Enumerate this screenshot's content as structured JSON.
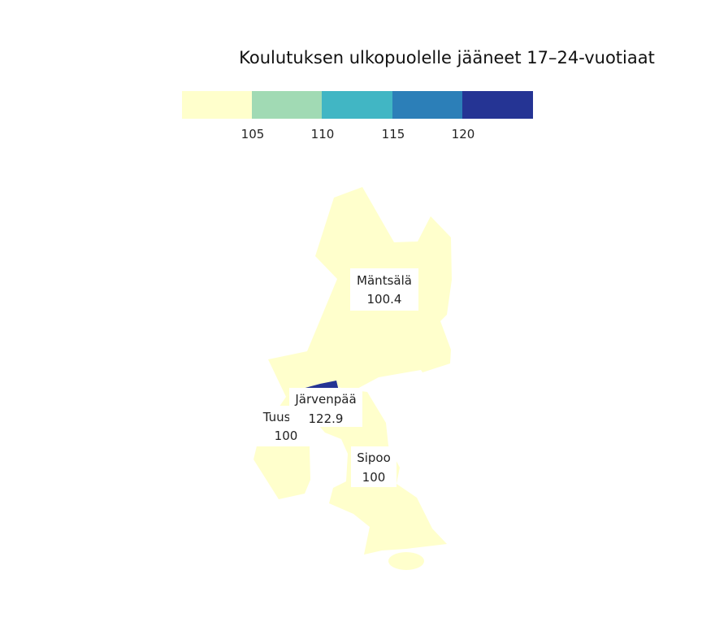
{
  "title": "Koulutuksen ulkopuolelle jääneet 17–24-vuotiaat",
  "legend": {
    "ticks": [
      "105",
      "110",
      "115",
      "120"
    ],
    "colors": [
      "#ffffcc",
      "#a1dab4",
      "#41b6c4",
      "#2c7fb8",
      "#253494"
    ]
  },
  "regions": [
    {
      "name": "Mäntsälä",
      "value": "100.4",
      "color": "#ffffcc"
    },
    {
      "name": "Järvenpää",
      "value": "122.9",
      "color": "#253494"
    },
    {
      "name": "Tuusula",
      "value": "100",
      "color": "#ffffcc"
    },
    {
      "name": "Sipoo",
      "value": "100",
      "color": "#ffffcc"
    }
  ]
}
